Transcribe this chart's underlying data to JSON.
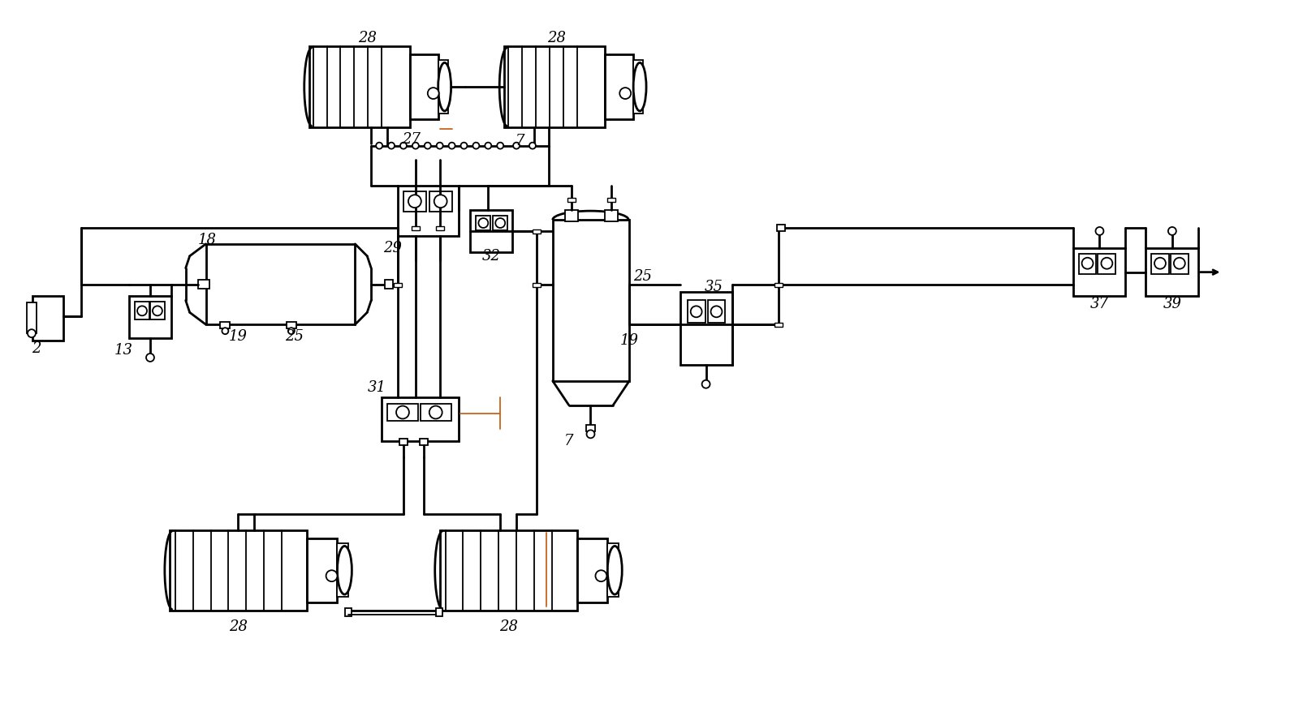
{
  "background_color": "#ffffff",
  "line_color": "#000000",
  "accent_color": "#c8651b",
  "fig_width": 16.05,
  "fig_height": 8.67
}
